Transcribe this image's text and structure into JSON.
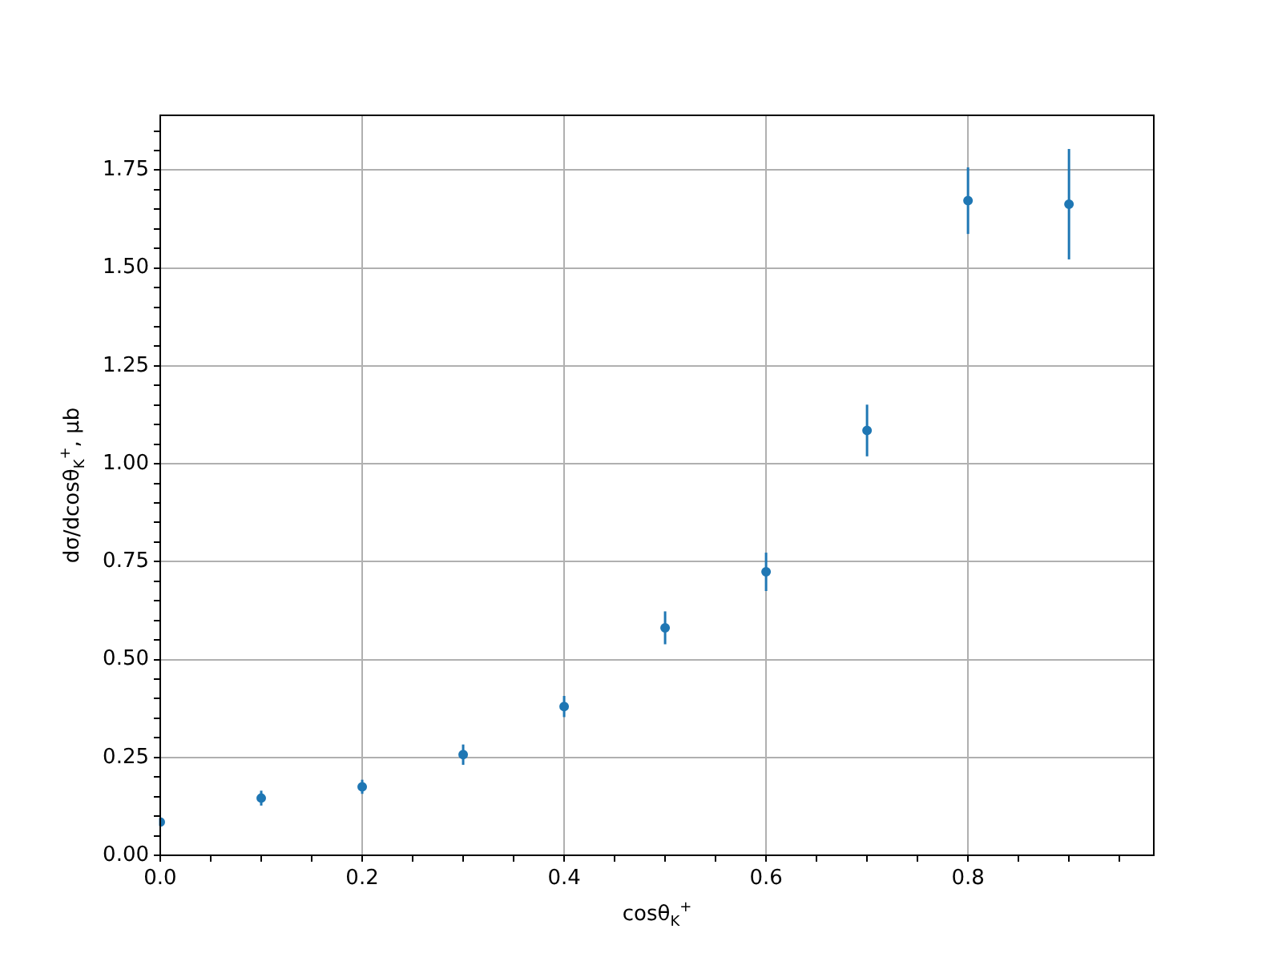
{
  "chart_data": {
    "type": "scatter",
    "xlabel": "cosθ$_{K}$$^{+}$",
    "ylabel": "dσ/dcosθ$_{K}$$^{+}$, μb",
    "x": [
      0.0,
      0.1,
      0.2,
      0.3,
      0.4,
      0.5,
      0.6,
      0.7,
      0.8,
      0.9
    ],
    "series": [
      {
        "color": "#1f77b4",
        "values": [
          0.085,
          0.146,
          0.175,
          0.257,
          0.38,
          0.581,
          0.724,
          1.085,
          1.672,
          1.663
        ],
        "errors": [
          0.01,
          0.019,
          0.018,
          0.026,
          0.027,
          0.042,
          0.049,
          0.066,
          0.085,
          0.141
        ]
      }
    ],
    "xlim": [
      0,
      0.984
    ],
    "xticks": [
      {
        "value": 0,
        "label": "0.0"
      },
      {
        "value": 0.05,
        "label": null
      },
      0.2,
      {
        "value": 0.1,
        "label": null
      },
      {
        "value": 0.15,
        "label": null
      },
      {
        "value": 0.25,
        "label": null
      },
      {
        "value": 0.3,
        "label": null
      },
      {
        "value": 0.35,
        "label": null
      },
      0.4,
      {
        "value": 0.45,
        "label": null
      },
      {
        "value": 0.5,
        "label": null
      },
      {
        "value": 0.55,
        "label": null
      },
      0.6,
      {
        "value": 0.65,
        "label": null
      },
      {
        "value": 0.7,
        "label": null
      },
      {
        "value": 0.75,
        "label": null
      },
      0.8,
      {
        "value": 0.85,
        "label": null
      },
      {
        "value": 0.9,
        "label": null
      },
      {
        "value": 0.95,
        "label": null
      }
    ],
    "ylim": [
      0,
      1.89
    ],
    "yticks": [
      {
        "value": 0,
        "label": "0.00"
      },
      {
        "value": 0.05,
        "label": null
      },
      {
        "value": 0.1,
        "label": null
      },
      {
        "value": 0.15,
        "label": null
      },
      {
        "value": 0.2,
        "label": null
      },
      0.25,
      {
        "value": 0.3,
        "label": null
      },
      {
        "value": 0.35,
        "label": null
      },
      {
        "value": 0.4,
        "label": null
      },
      {
        "value": 0.45,
        "label": null
      },
      {
        "value": 0.5,
        "label": "0.50"
      },
      {
        "value": 0.55,
        "label": null
      },
      {
        "value": 0.6,
        "label": null
      },
      {
        "value": 0.65,
        "label": null
      },
      {
        "value": 0.7,
        "label": null
      },
      0.75,
      {
        "value": 0.8,
        "label": null
      },
      {
        "value": 0.85,
        "label": null
      },
      {
        "value": 0.9,
        "label": null
      },
      {
        "value": 0.95,
        "label": null
      },
      {
        "value": 1,
        "label": "1.00"
      },
      {
        "value": 1.05,
        "label": null
      },
      {
        "value": 1.1,
        "label": null
      },
      {
        "value": 1.15,
        "label": null
      },
      {
        "value": 1.2,
        "label": null
      },
      1.25,
      {
        "value": 1.3,
        "label": null
      },
      {
        "value": 1.35,
        "label": null
      },
      {
        "value": 1.4,
        "label": null
      },
      {
        "value": 1.45,
        "label": null
      },
      {
        "value": 1.5,
        "label": "1.50"
      },
      {
        "value": 1.55,
        "label": null
      },
      {
        "value": 1.6,
        "label": null
      },
      {
        "value": 1.65,
        "label": null
      },
      {
        "value": 1.7,
        "label": null
      },
      1.75,
      {
        "value": 1.8,
        "label": null
      },
      {
        "value": 1.85,
        "label": null
      }
    ],
    "grid": true,
    "marker": "circle",
    "legend": false
  }
}
